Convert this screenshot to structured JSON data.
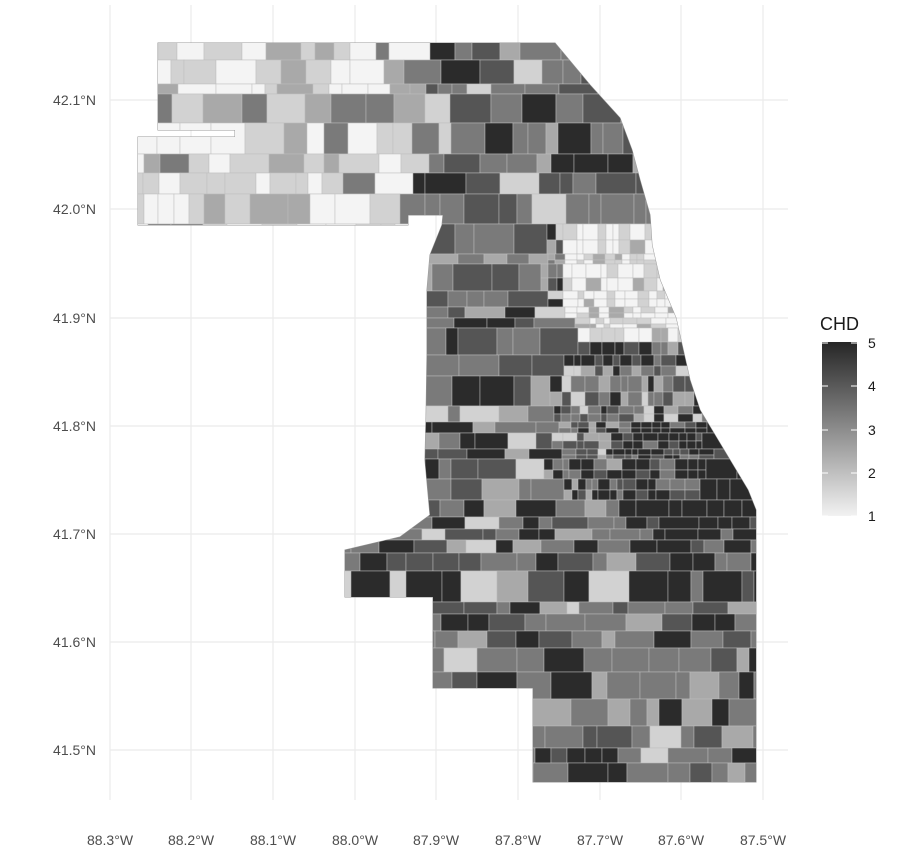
{
  "map": {
    "lat_labels": [
      "42.1°N",
      "42.0°N",
      "41.9°N",
      "41.8°N",
      "41.7°N",
      "41.6°N",
      "41.5°N"
    ],
    "lon_labels": [
      "88.3°W",
      "88.2°W",
      "88.1°W",
      "88.0°W",
      "87.9°W",
      "87.8°W",
      "87.7°W",
      "87.6°W",
      "87.5°W"
    ],
    "grid": true,
    "fill_colors": [
      "#f4f4f4",
      "#d2d2d2",
      "#a9a9a9",
      "#7a7a7a",
      "#555555",
      "#2b2b2b"
    ],
    "border_color": "#bdbdbd"
  },
  "legend": {
    "title": "CHD",
    "ticks": [
      "1",
      "2",
      "3",
      "4",
      "5"
    ],
    "color_low": "#f2f2f2",
    "color_high": "#262626"
  }
}
